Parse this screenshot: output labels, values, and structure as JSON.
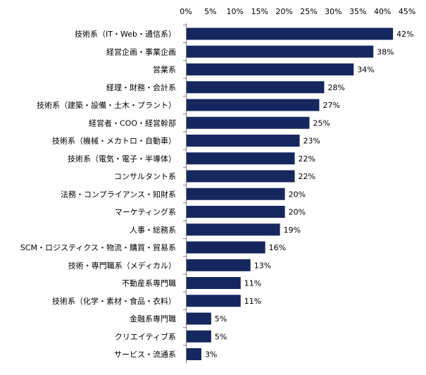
{
  "chart_data": {
    "type": "bar",
    "orientation": "horizontal",
    "categories": [
      "技術系（IT・Web・通信系）",
      "経営企画・事業企画",
      "営業系",
      "経理・財務・会計系",
      "技術系（建築・設備・土木・プラント）",
      "経営者・COO・経営幹部",
      "技術系（機械・メカトロ・自動車）",
      "技術系（電気・電子・半導体）",
      "コンサルタント系",
      "法務・コンプライアンス・知財系",
      "マーケティング系",
      "人事・総務系",
      "SCM・ロジスティクス・物流・購買・貿易系",
      "技術・専門職系（メディカル）",
      "不動産系専門職",
      "技術系（化学・素材・食品・衣料）",
      "金融系専門職",
      "クリエイティブ系",
      "サービス・流通系"
    ],
    "values": [
      42,
      38,
      34,
      28,
      27,
      25,
      23,
      22,
      22,
      20,
      20,
      19,
      16,
      13,
      11,
      11,
      5,
      5,
      3
    ],
    "value_labels": [
      "42%",
      "38%",
      "34%",
      "28%",
      "27%",
      "25%",
      "23%",
      "22%",
      "22%",
      "20%",
      "20%",
      "19%",
      "16%",
      "13%",
      "11%",
      "11%",
      "5%",
      "5%",
      "3%"
    ],
    "x_ticks": [
      "0%",
      "5%",
      "10%",
      "15%",
      "20%",
      "25%",
      "30%",
      "35%",
      "40%",
      "45%"
    ],
    "xlim": [
      0,
      45
    ],
    "xaxis_position": "top",
    "grid": false,
    "legend": "none",
    "bar_color": "#16275f",
    "title": "",
    "xlabel": "",
    "ylabel": ""
  }
}
